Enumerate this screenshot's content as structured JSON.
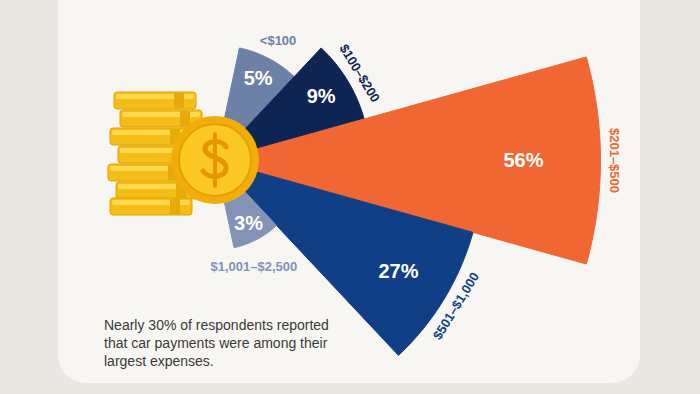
{
  "chart_data": {
    "type": "pie",
    "categories": [
      "<$100",
      "$100–$200",
      "$201–$500",
      "$501–$1,000",
      "$1,001–$2,500"
    ],
    "values": [
      5,
      9,
      56,
      27,
      3
    ],
    "value_labels": [
      "5%",
      "9%",
      "56%",
      "27%",
      "3%"
    ],
    "colors": [
      "#6d80a6",
      "#0e2452",
      "#f06733",
      "#103f86",
      "#8393b6"
    ],
    "data_labels": true,
    "tick_labels": false,
    "annotations": [
      "Nearly 30% of respondents reported that car payments were among their largest expenses."
    ]
  }
}
